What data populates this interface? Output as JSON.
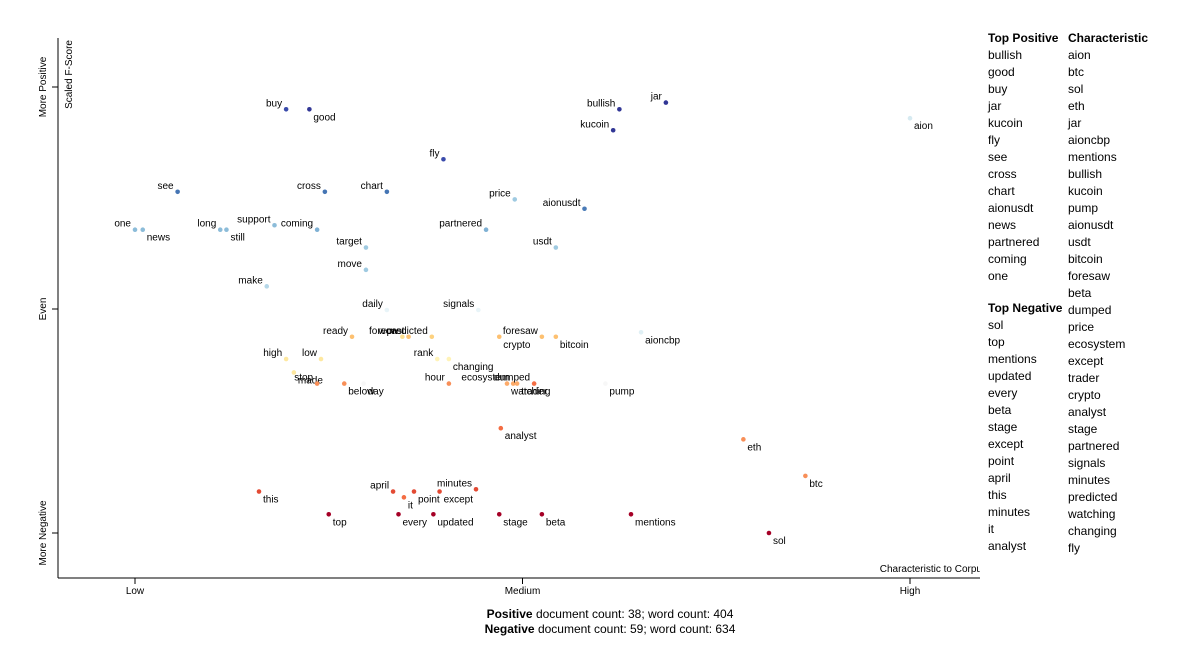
{
  "chart_data": {
    "type": "scatter",
    "title": "",
    "xlabel": "Characteristic to Corpus",
    "ylabel": "Scaled F-Score",
    "x_ticks": [
      "Low",
      "Medium",
      "High"
    ],
    "y_ticks": [
      "More Negative",
      "Even",
      "More Positive"
    ],
    "xlim": [
      0,
      1
    ],
    "ylim": [
      0,
      1
    ],
    "grid": false,
    "points": [
      {
        "term": "buy",
        "x": 0.195,
        "y": 0.95,
        "color": "#3a4bab"
      },
      {
        "term": "good",
        "x": 0.225,
        "y": 0.95,
        "color": "#313695"
      },
      {
        "term": "bullish",
        "x": 0.625,
        "y": 0.95,
        "color": "#313695"
      },
      {
        "term": "jar",
        "x": 0.685,
        "y": 0.965,
        "color": "#313695"
      },
      {
        "term": "kucoin",
        "x": 0.617,
        "y": 0.903,
        "color": "#313695"
      },
      {
        "term": "aion",
        "x": 1.0,
        "y": 0.93,
        "color": "#d6eaf1"
      },
      {
        "term": "fly",
        "x": 0.398,
        "y": 0.838,
        "color": "#3a4bab"
      },
      {
        "term": "see",
        "x": 0.055,
        "y": 0.765,
        "color": "#4575b4"
      },
      {
        "term": "cross",
        "x": 0.245,
        "y": 0.765,
        "color": "#4575b4"
      },
      {
        "term": "chart",
        "x": 0.325,
        "y": 0.765,
        "color": "#4575b4"
      },
      {
        "term": "price",
        "x": 0.49,
        "y": 0.748,
        "color": "#9fcae1"
      },
      {
        "term": "aionusdt",
        "x": 0.58,
        "y": 0.727,
        "color": "#4a7bb7"
      },
      {
        "term": "one",
        "x": 0.0,
        "y": 0.68,
        "color": "#8cbcd9"
      },
      {
        "term": "news",
        "x": 0.01,
        "y": 0.68,
        "color": "#8cbcd9"
      },
      {
        "term": "long",
        "x": 0.11,
        "y": 0.68,
        "color": "#8cbcd9"
      },
      {
        "term": "still",
        "x": 0.118,
        "y": 0.68,
        "color": "#8cbcd9"
      },
      {
        "term": "support",
        "x": 0.18,
        "y": 0.69,
        "color": "#8cbcd9"
      },
      {
        "term": "coming",
        "x": 0.235,
        "y": 0.68,
        "color": "#7fb1d4"
      },
      {
        "term": "partnered",
        "x": 0.453,
        "y": 0.68,
        "color": "#7fb1d4"
      },
      {
        "term": "target",
        "x": 0.298,
        "y": 0.64,
        "color": "#9fcae1"
      },
      {
        "term": "usdt",
        "x": 0.543,
        "y": 0.64,
        "color": "#9fcae1"
      },
      {
        "term": "move",
        "x": 0.298,
        "y": 0.59,
        "color": "#9fcae1"
      },
      {
        "term": "make",
        "x": 0.17,
        "y": 0.553,
        "color": "#b5d7e8"
      },
      {
        "term": "daily",
        "x": 0.325,
        "y": 0.5,
        "color": "#e8f4f8"
      },
      {
        "term": "signals",
        "x": 0.443,
        "y": 0.5,
        "color": "#e8f4f8"
      },
      {
        "term": "wow",
        "x": 0.345,
        "y": 0.44,
        "color": "#fee090"
      },
      {
        "term": "predicted",
        "x": 0.383,
        "y": 0.44,
        "color": "#fdd17f"
      },
      {
        "term": "forecast",
        "x": 0.353,
        "y": 0.44,
        "color": "#fdc070"
      },
      {
        "term": "ready",
        "x": 0.28,
        "y": 0.44,
        "color": "#fdc070"
      },
      {
        "term": "foresaw",
        "x": 0.525,
        "y": 0.44,
        "color": "#fdc070"
      },
      {
        "term": "crypto",
        "x": 0.47,
        "y": 0.44,
        "color": "#fdc070"
      },
      {
        "term": "bitcoin",
        "x": 0.543,
        "y": 0.44,
        "color": "#fdc070"
      },
      {
        "term": "aioncbp",
        "x": 0.653,
        "y": 0.45,
        "color": "#e0f0f5"
      },
      {
        "term": "high",
        "x": 0.195,
        "y": 0.39,
        "color": "#fee8a0"
      },
      {
        "term": "low",
        "x": 0.24,
        "y": 0.39,
        "color": "#fee8a0"
      },
      {
        "term": "rank",
        "x": 0.39,
        "y": 0.39,
        "color": "#fff3b8"
      },
      {
        "term": "changing",
        "x": 0.405,
        "y": 0.39,
        "color": "#fff3b8"
      },
      {
        "term": "made",
        "x": 0.205,
        "y": 0.36,
        "color": "#fee8a0"
      },
      {
        "term": "stop",
        "x": 0.235,
        "y": 0.335,
        "color": "#f88f58"
      },
      {
        "term": "below",
        "x": 0.27,
        "y": 0.335,
        "color": "#f88f58"
      },
      {
        "term": "day",
        "x": 0.295,
        "y": 0.335,
        "color": "#f7f7f7"
      },
      {
        "term": "hour",
        "x": 0.405,
        "y": 0.335,
        "color": "#f88f58"
      },
      {
        "term": "watching",
        "x": 0.48,
        "y": 0.335,
        "color": "#fdab6a"
      },
      {
        "term": "ecosystem",
        "x": 0.488,
        "y": 0.335,
        "color": "#fdab6a"
      },
      {
        "term": "dumped",
        "x": 0.515,
        "y": 0.335,
        "color": "#f46d43"
      },
      {
        "term": "trader",
        "x": 0.493,
        "y": 0.335,
        "color": "#fdab6a"
      },
      {
        "term": "pump",
        "x": 0.607,
        "y": 0.335,
        "color": "#f7f7f7"
      },
      {
        "term": "analyst",
        "x": 0.472,
        "y": 0.235,
        "color": "#f46d43"
      },
      {
        "term": "eth",
        "x": 0.785,
        "y": 0.21,
        "color": "#f88f58"
      },
      {
        "term": "btc",
        "x": 0.865,
        "y": 0.128,
        "color": "#f88f58"
      },
      {
        "term": "this",
        "x": 0.16,
        "y": 0.093,
        "color": "#e34a33"
      },
      {
        "term": "april",
        "x": 0.333,
        "y": 0.093,
        "color": "#e34a33"
      },
      {
        "term": "it",
        "x": 0.347,
        "y": 0.08,
        "color": "#f46d43"
      },
      {
        "term": "point",
        "x": 0.36,
        "y": 0.093,
        "color": "#e34a33"
      },
      {
        "term": "minutes",
        "x": 0.44,
        "y": 0.098,
        "color": "#e34a33"
      },
      {
        "term": "except",
        "x": 0.393,
        "y": 0.093,
        "color": "#e34a33"
      },
      {
        "term": "top",
        "x": 0.25,
        "y": 0.042,
        "color": "#a50026"
      },
      {
        "term": "every",
        "x": 0.34,
        "y": 0.042,
        "color": "#a50026"
      },
      {
        "term": "updated",
        "x": 0.385,
        "y": 0.042,
        "color": "#a50026"
      },
      {
        "term": "stage",
        "x": 0.47,
        "y": 0.042,
        "color": "#a50026"
      },
      {
        "term": "beta",
        "x": 0.525,
        "y": 0.042,
        "color": "#a50026"
      },
      {
        "term": "mentions",
        "x": 0.64,
        "y": 0.042,
        "color": "#a50026"
      },
      {
        "term": "sol",
        "x": 0.818,
        "y": 0.0,
        "color": "#a50026"
      }
    ]
  },
  "side": {
    "top_positive": {
      "title": "Top Positive",
      "items": [
        "bullish",
        "good",
        "buy",
        "jar",
        "kucoin",
        "fly",
        "see",
        "cross",
        "chart",
        "aionusdt",
        "news",
        "partnered",
        "coming",
        "one"
      ]
    },
    "top_negative": {
      "title": "Top Negative",
      "items": [
        "sol",
        "top",
        "mentions",
        "updated",
        "every",
        "beta",
        "stage",
        "except",
        "point",
        "april",
        "this",
        "minutes",
        "it",
        "analyst"
      ]
    },
    "characteristic": {
      "title": "Characteristic",
      "items": [
        "aion",
        "btc",
        "sol",
        "eth",
        "jar",
        "aioncbp",
        "mentions",
        "bullish",
        "kucoin",
        "pump",
        "aionusdt",
        "usdt",
        "bitcoin",
        "foresaw",
        "beta",
        "dumped",
        "price",
        "ecosystem",
        "except",
        "trader",
        "crypto",
        "analyst",
        "stage",
        "partnered",
        "signals",
        "minutes",
        "predicted",
        "watching",
        "changing",
        "fly"
      ]
    }
  },
  "counts": {
    "positive_label": "Positive",
    "positive_text": " document count: 38; word count: 404",
    "negative_label": "Negative",
    "negative_text": " document count: 59; word count: 634"
  }
}
